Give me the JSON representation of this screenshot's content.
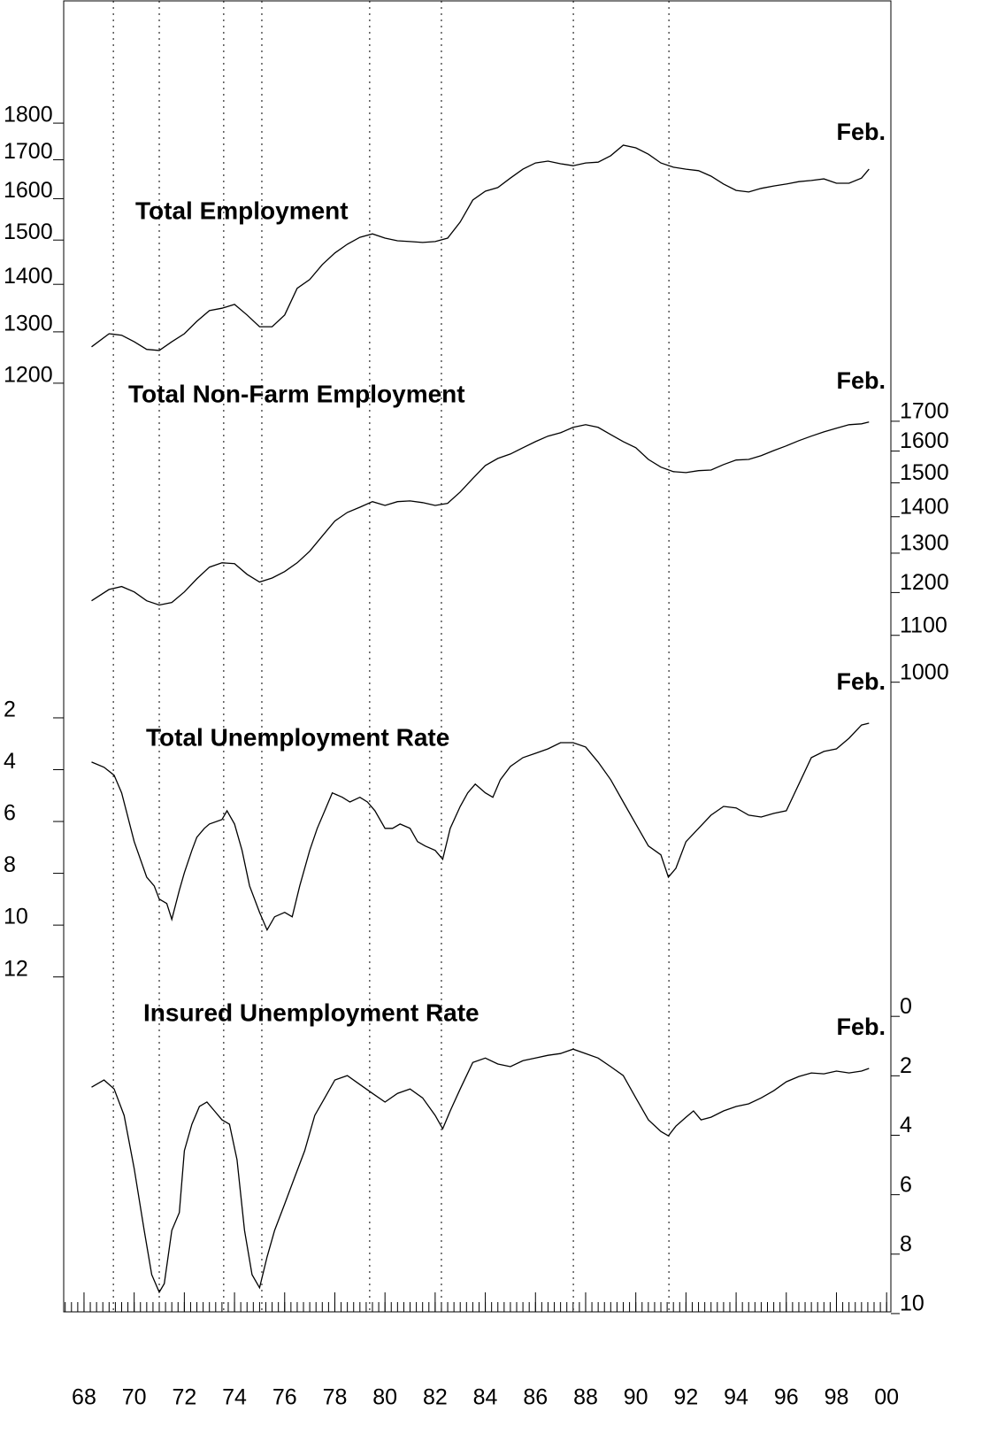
{
  "x_axis": {
    "xlim": [
      1967.19,
      2000.17
    ],
    "xticks": [
      {
        "value": 1968,
        "label": "68"
      },
      {
        "value": 1970,
        "label": "70"
      },
      {
        "value": 1972,
        "label": "72"
      },
      {
        "value": 1974,
        "label": "74"
      },
      {
        "value": 1976,
        "label": "76"
      },
      {
        "value": 1978,
        "label": "78"
      },
      {
        "value": 1980,
        "label": "80"
      },
      {
        "value": 1982,
        "label": "82"
      },
      {
        "value": 1984,
        "label": "84"
      },
      {
        "value": 1986,
        "label": "86"
      },
      {
        "value": 1988,
        "label": "88"
      },
      {
        "value": 1990,
        "label": "90"
      },
      {
        "value": 1992,
        "label": "92"
      },
      {
        "value": 1994,
        "label": "94"
      },
      {
        "value": 1996,
        "label": "96"
      },
      {
        "value": 1998,
        "label": "98"
      },
      {
        "value": 2000,
        "label": "00"
      }
    ],
    "xminor_step": 0.25,
    "reference_lines": [
      1969.17,
      1971.0,
      1973.57,
      1975.09,
      1979.39,
      1982.25,
      1987.51,
      1991.32
    ]
  },
  "chart_data": [
    {
      "type": "line",
      "title": "Total Employment",
      "annotation": "Feb.",
      "color": "#000000",
      "log": true,
      "axis_side": "left",
      "ylim": [
        279,
        2154
      ],
      "yticks": [
        1200,
        1300,
        1400,
        1500,
        1600,
        1700,
        1800
      ],
      "x": [
        1968.3,
        1969,
        1969.5,
        1970,
        1970.5,
        1971,
        1971.5,
        1972,
        1972.5,
        1973,
        1973.5,
        1974,
        1974.5,
        1975,
        1975.5,
        1976,
        1976.5,
        1977,
        1977.5,
        1978,
        1978.5,
        1979,
        1979.5,
        1980,
        1980.5,
        1981,
        1981.5,
        1982,
        1982.5,
        1983,
        1983.5,
        1984,
        1984.5,
        1985,
        1985.5,
        1986,
        1986.5,
        1987,
        1987.5,
        1988,
        1988.5,
        1989,
        1989.5,
        1990,
        1990.5,
        1991,
        1991.5,
        1992,
        1992.5,
        1993,
        1993.5,
        1994,
        1994.5,
        1995,
        1995.5,
        1996,
        1996.5,
        1997,
        1997.5,
        1998,
        1998.5,
        1999,
        1999.3
      ],
      "values": [
        1256,
        1282,
        1279,
        1266,
        1251,
        1249,
        1266,
        1282,
        1307,
        1329,
        1334,
        1342,
        1320,
        1296,
        1296,
        1320,
        1376,
        1395,
        1428,
        1454,
        1474,
        1490,
        1498,
        1488,
        1482,
        1480,
        1478,
        1480,
        1488,
        1526,
        1579,
        1601,
        1610,
        1634,
        1657,
        1673,
        1678,
        1671,
        1666,
        1673,
        1675,
        1692,
        1720,
        1713,
        1696,
        1673,
        1662,
        1657,
        1653,
        1639,
        1619,
        1603,
        1599,
        1608,
        1614,
        1619,
        1625,
        1628,
        1632,
        1621,
        1621,
        1634,
        1657
      ]
    },
    {
      "type": "line",
      "title": "Total Non-Farm Employment",
      "annotation": "Feb.",
      "color": "#000000",
      "log": true,
      "axis_side": "right",
      "ylim": [
        273,
        3925
      ],
      "yticks": [
        1000,
        1100,
        1200,
        1300,
        1400,
        1500,
        1600,
        1700
      ],
      "x": [
        1968.3,
        1969,
        1969.5,
        1970,
        1970.5,
        1971,
        1971.5,
        1972,
        1972.5,
        1973,
        1973.5,
        1974,
        1974.5,
        1975,
        1975.5,
        1976,
        1976.5,
        1977,
        1977.5,
        1978,
        1978.5,
        1979,
        1979.5,
        1980,
        1980.5,
        1981,
        1981.5,
        1982,
        1982.5,
        1983,
        1983.5,
        1984,
        1984.5,
        1985,
        1985.5,
        1986,
        1986.5,
        1987,
        1987.5,
        1988,
        1988.5,
        1989,
        1989.5,
        1990,
        1990.5,
        1991,
        1991.5,
        1992,
        1992.5,
        1993,
        1993.5,
        1994,
        1994.5,
        1995,
        1995.5,
        1996,
        1996.5,
        1997,
        1997.5,
        1998,
        1998.5,
        1999,
        1999.3
      ],
      "values": [
        1159,
        1186,
        1193,
        1180,
        1159,
        1149,
        1155,
        1180,
        1212,
        1241,
        1252,
        1250,
        1223,
        1204,
        1214,
        1230,
        1252,
        1282,
        1322,
        1363,
        1387,
        1402,
        1418,
        1407,
        1418,
        1420,
        1415,
        1407,
        1413,
        1446,
        1486,
        1526,
        1548,
        1562,
        1582,
        1602,
        1620,
        1631,
        1649,
        1658,
        1649,
        1625,
        1602,
        1582,
        1545,
        1521,
        1507,
        1504,
        1510,
        1512,
        1529,
        1543,
        1545,
        1557,
        1573,
        1588,
        1605,
        1620,
        1634,
        1646,
        1658,
        1661,
        1667
      ]
    },
    {
      "type": "line",
      "title": "Total Unemployment Rate",
      "annotation": "Feb.",
      "color": "#000000",
      "log": false,
      "axis_side": "left",
      "ylim": [
        25.2,
        -25.4
      ],
      "yticks": [
        2,
        4,
        6,
        8,
        10,
        12
      ],
      "x": [
        1968.3,
        1968.8,
        1969.2,
        1969.5,
        1970,
        1970.5,
        1970.8,
        1971,
        1971.3,
        1971.5,
        1971.8,
        1972,
        1972.3,
        1972.5,
        1972.8,
        1973,
        1973.5,
        1973.7,
        1974,
        1974.3,
        1974.6,
        1975,
        1975.3,
        1975.6,
        1976,
        1976.3,
        1976.6,
        1977,
        1977.3,
        1977.6,
        1977.9,
        1978.3,
        1978.6,
        1979,
        1979.3,
        1979.6,
        1980,
        1980.3,
        1980.6,
        1981,
        1981.3,
        1981.6,
        1982,
        1982.3,
        1982.6,
        1983,
        1983.3,
        1983.6,
        1984,
        1984.3,
        1984.6,
        1985,
        1985.5,
        1986,
        1986.5,
        1987,
        1987.5,
        1988,
        1988.5,
        1989,
        1989.5,
        1990,
        1990.5,
        1991,
        1991.3,
        1991.6,
        1992,
        1992.5,
        1993,
        1993.5,
        1994,
        1994.5,
        1995,
        1995.5,
        1996,
        1996.5,
        1997,
        1997.5,
        1998,
        1998.5,
        1999,
        1999.3
      ],
      "values": [
        3.98,
        4.18,
        4.49,
        5.17,
        7.05,
        8.42,
        8.76,
        9.27,
        9.44,
        10.05,
        8.93,
        8.25,
        7.39,
        6.88,
        6.54,
        6.37,
        6.2,
        5.86,
        6.37,
        7.39,
        8.76,
        9.78,
        10.46,
        9.95,
        9.78,
        9.95,
        8.76,
        7.39,
        6.54,
        5.86,
        5.17,
        5.34,
        5.52,
        5.34,
        5.52,
        5.86,
        6.54,
        6.54,
        6.37,
        6.54,
        7.05,
        7.22,
        7.39,
        7.73,
        6.54,
        5.69,
        5.17,
        4.83,
        5.17,
        5.34,
        4.66,
        4.15,
        3.81,
        3.64,
        3.47,
        3.23,
        3.23,
        3.4,
        3.98,
        4.66,
        5.52,
        6.37,
        7.22,
        7.56,
        8.42,
        8.08,
        7.05,
        6.54,
        6.03,
        5.69,
        5.75,
        6.03,
        6.1,
        5.96,
        5.86,
        4.83,
        3.81,
        3.57,
        3.47,
        3.06,
        2.55,
        2.48
      ]
    },
    {
      "type": "line",
      "title": "Insured Unemployment Rate",
      "annotation": "Feb.",
      "color": "#000000",
      "log": false,
      "axis_side": "right",
      "ylim": [
        10.24,
        -33.87
      ],
      "yticks": [
        0,
        2,
        4,
        6,
        8,
        10
      ],
      "x": [
        1968.3,
        1968.8,
        1969.2,
        1969.6,
        1970,
        1970.4,
        1970.7,
        1971,
        1971.2,
        1971.5,
        1971.8,
        1972,
        1972.3,
        1972.6,
        1972.9,
        1973.2,
        1973.5,
        1973.8,
        1974.1,
        1974.4,
        1974.7,
        1975,
        1975.3,
        1975.6,
        1976,
        1976.4,
        1976.8,
        1977.2,
        1977.6,
        1978,
        1978.5,
        1979,
        1979.5,
        1980,
        1980.5,
        1981,
        1981.5,
        1982,
        1982.3,
        1982.6,
        1983,
        1983.5,
        1984,
        1984.5,
        1985,
        1985.5,
        1986,
        1986.5,
        1987,
        1987.5,
        1988,
        1988.5,
        1989,
        1989.5,
        1990,
        1990.5,
        1991,
        1991.3,
        1991.6,
        1992,
        1992.3,
        1992.6,
        1993,
        1993.5,
        1994,
        1994.5,
        1995,
        1995.5,
        1996,
        1996.5,
        1997,
        1997.5,
        1998,
        1998.5,
        1999,
        1999.3
      ],
      "values": [
        2.68,
        2.44,
        2.74,
        3.63,
        5.42,
        7.5,
        8.99,
        9.58,
        9.29,
        7.5,
        6.9,
        4.82,
        3.93,
        3.33,
        3.18,
        3.48,
        3.78,
        3.93,
        5.12,
        7.5,
        8.99,
        9.43,
        8.39,
        7.5,
        6.61,
        5.71,
        4.82,
        3.63,
        3.04,
        2.44,
        2.29,
        2.59,
        2.89,
        3.18,
        2.89,
        2.74,
        3.04,
        3.63,
        4.08,
        3.48,
        2.74,
        1.85,
        1.7,
        1.9,
        1.99,
        1.79,
        1.7,
        1.61,
        1.55,
        1.4,
        1.55,
        1.7,
        1.99,
        2.29,
        3.04,
        3.78,
        4.17,
        4.32,
        3.99,
        3.69,
        3.48,
        3.78,
        3.69,
        3.48,
        3.33,
        3.24,
        3.04,
        2.8,
        2.5,
        2.32,
        2.2,
        2.23,
        2.14,
        2.2,
        2.14,
        2.05
      ]
    }
  ]
}
